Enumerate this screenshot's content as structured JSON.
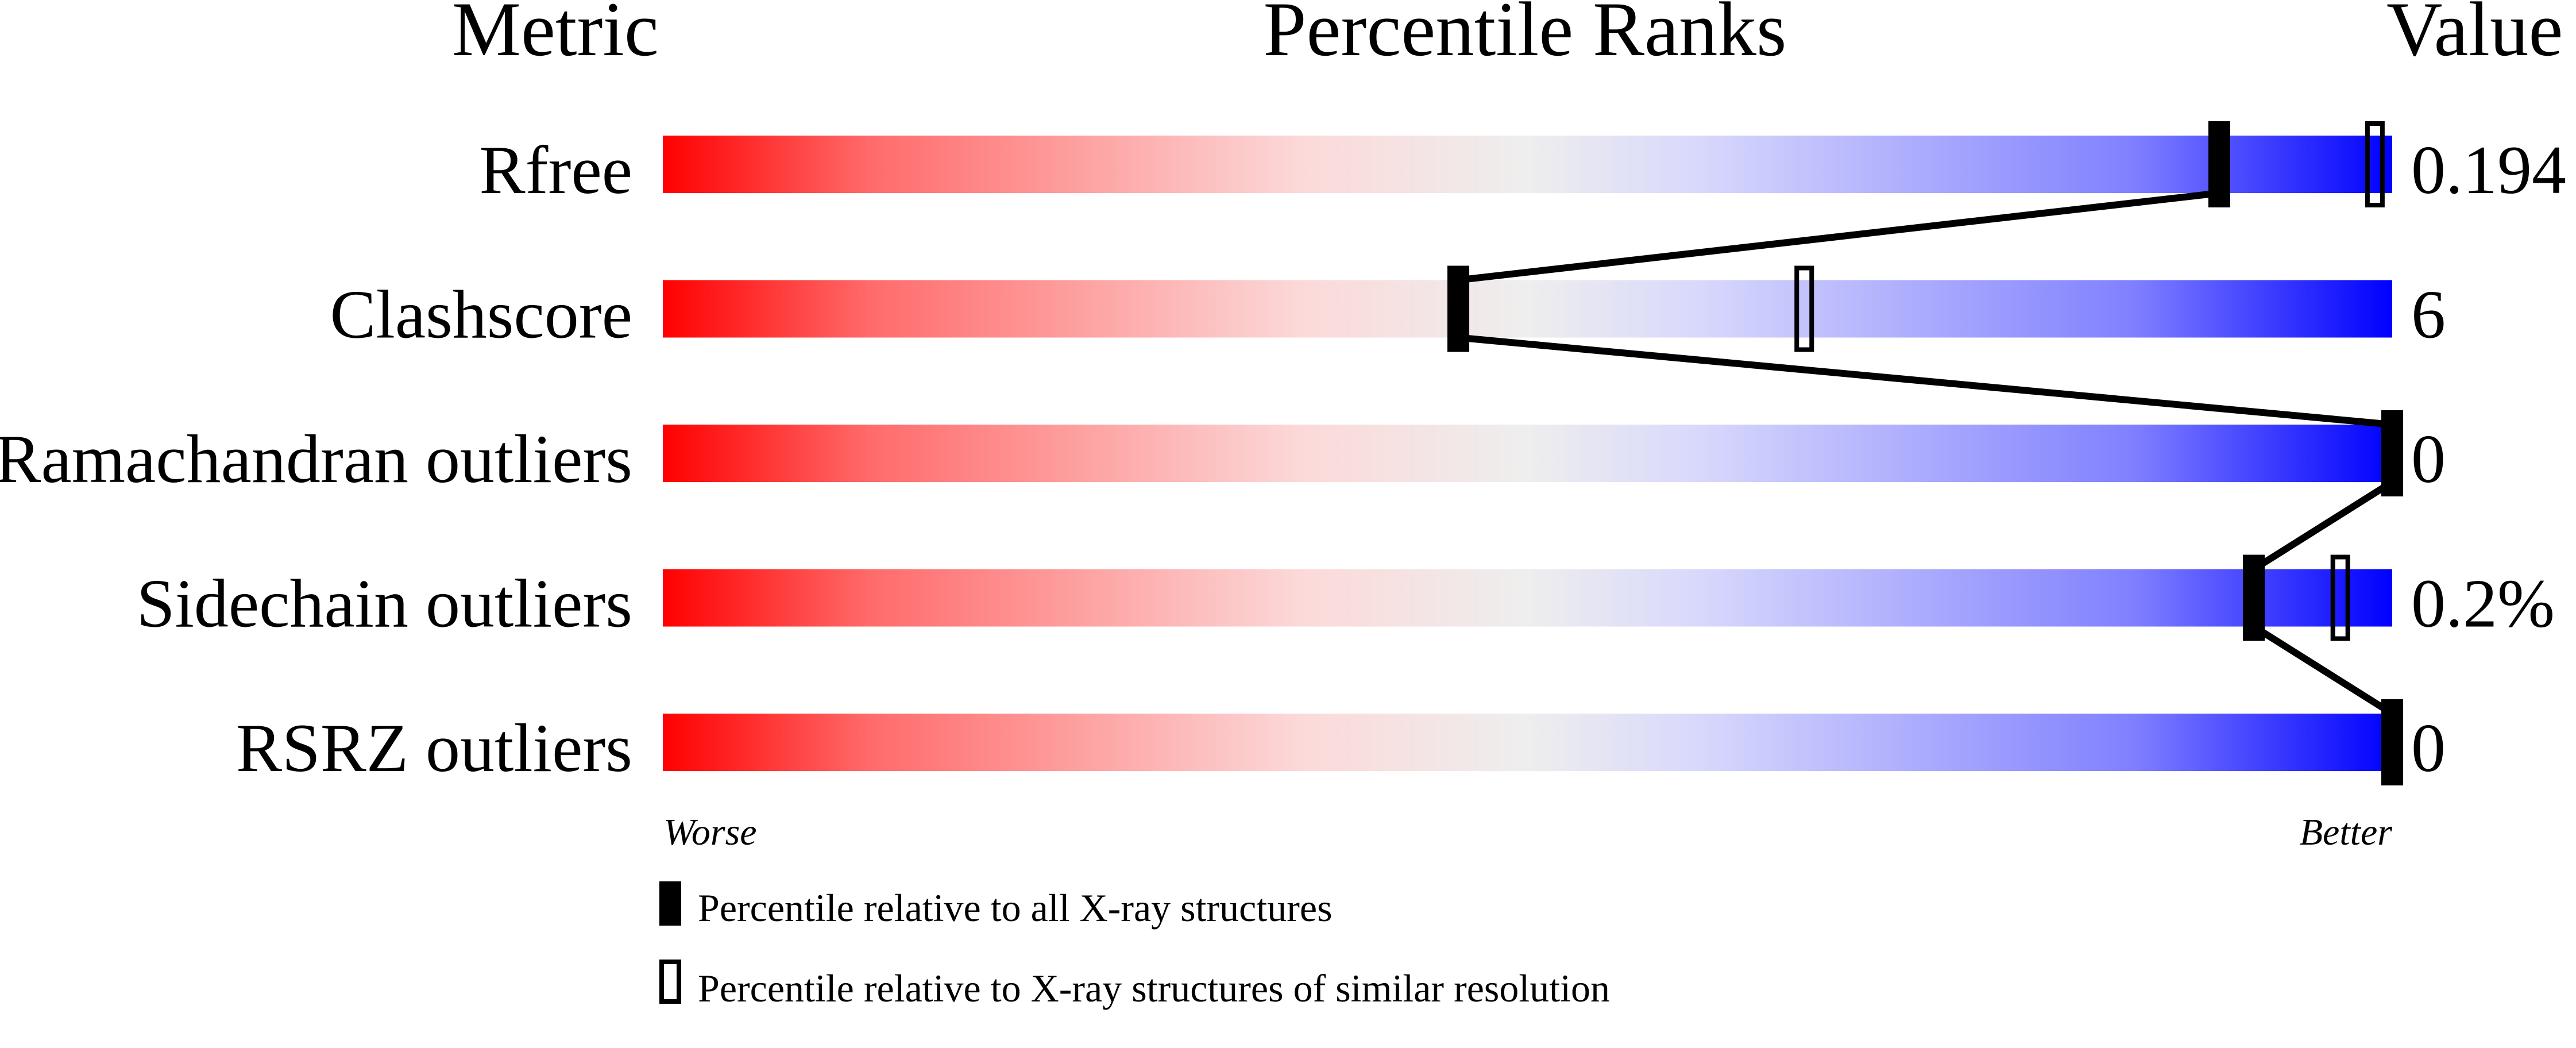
{
  "chart_data": {
    "type": "percentile-bars",
    "headers": {
      "metric": "Metric",
      "ranks": "Percentile Ranks",
      "value": "Value"
    },
    "xlim": [
      0,
      100
    ],
    "axis_labels": {
      "left": "Worse",
      "right": "Better"
    },
    "gradient_colors": [
      "#ff0000",
      "#ff6b6b",
      "#fcd9d9",
      "#eeeeee",
      "#d8d8fc",
      "#8080ff",
      "#0000ff"
    ],
    "rows": [
      {
        "metric": "Rfree",
        "value": "0.194",
        "percentile_all": 90,
        "percentile_similar": 99
      },
      {
        "metric": "Clashscore",
        "value": "6",
        "percentile_all": 46,
        "percentile_similar": 66
      },
      {
        "metric": "Ramachandran outliers",
        "value": "0",
        "percentile_all": 100,
        "percentile_similar": null
      },
      {
        "metric": "Sidechain outliers",
        "value": "0.2%",
        "percentile_all": 92,
        "percentile_similar": 97
      },
      {
        "metric": "RSRZ outliers",
        "value": "0",
        "percentile_all": 100,
        "percentile_similar": null
      }
    ],
    "legend": [
      {
        "marker": "filled",
        "label": "Percentile relative to all X-ray structures"
      },
      {
        "marker": "open",
        "label": "Percentile relative to X-ray structures of similar resolution"
      }
    ]
  }
}
